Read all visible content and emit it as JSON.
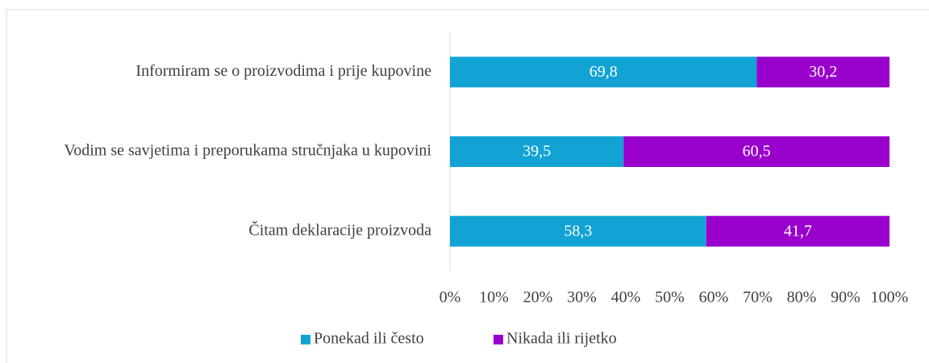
{
  "chart_data": {
    "type": "bar",
    "orientation": "horizontal",
    "stacked": true,
    "categories": [
      "Informiram se o proizvodima i prije kupovine",
      "Vodim se savjetima i preporukama stručnjaka u kupovini",
      "Čitam deklaracije proizvoda"
    ],
    "series": [
      {
        "name": "Ponekad ili često",
        "color": "#12a3d4",
        "values": [
          69.8,
          39.5,
          58.3
        ],
        "value_labels": [
          "69,8",
          "39,5",
          "58,3"
        ]
      },
      {
        "name": "Nikada ili rijetko",
        "color": "#9900cc",
        "values": [
          30.2,
          60.5,
          41.7
        ],
        "value_labels": [
          "30,2",
          "60,5",
          "41,7"
        ]
      }
    ],
    "xlim": [
      0,
      100
    ],
    "xticks": [
      {
        "value": 0,
        "label": "0%"
      },
      {
        "value": 10,
        "label": "10%"
      },
      {
        "value": 20,
        "label": "20%"
      },
      {
        "value": 30,
        "label": "30%"
      },
      {
        "value": 40,
        "label": "40%"
      },
      {
        "value": 50,
        "label": "50%"
      },
      {
        "value": 60,
        "label": "60%"
      },
      {
        "value": 70,
        "label": "70%"
      },
      {
        "value": 80,
        "label": "80%"
      },
      {
        "value": 90,
        "label": "90%"
      },
      {
        "value": 100,
        "label": "100%"
      }
    ],
    "legend": "bottom"
  }
}
